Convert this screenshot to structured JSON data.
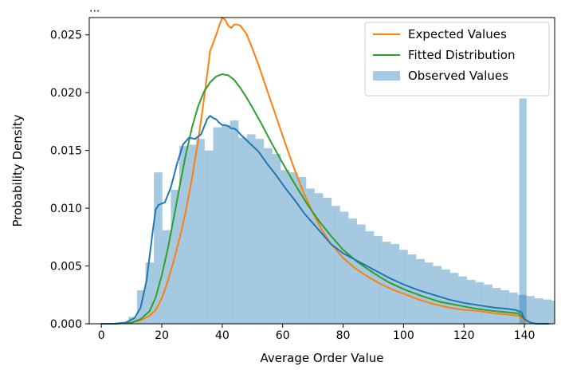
{
  "chart_data": {
    "type": "histogram",
    "top_caption": "...",
    "xlabel": "Average Order Value",
    "ylabel": "Probability Density",
    "xlim": [
      -4,
      150
    ],
    "ylim": [
      0,
      0.0265
    ],
    "xticks": [
      0,
      20,
      40,
      60,
      80,
      100,
      120,
      140
    ],
    "yticks": [
      0.0,
      0.005,
      0.01,
      0.015,
      0.02,
      0.025
    ],
    "ytick_labels": [
      "0.000",
      "0.005",
      "0.010",
      "0.015",
      "0.020",
      "0.025"
    ],
    "grid": false,
    "legend": {
      "placement": "top-right",
      "entries": [
        {
          "name": "Expected Values",
          "kind": "line",
          "color": "#ff7f0e"
        },
        {
          "name": "Fitted Distribution",
          "kind": "line",
          "color": "#2ca02c"
        },
        {
          "name": "Observed Values",
          "kind": "patch",
          "color": "#1f77b4"
        }
      ]
    },
    "histogram": {
      "name": "Observed Values",
      "color": "#1f77b4",
      "alpha": 0.4,
      "bin_width": 2.8,
      "bins_start": 9,
      "values": [
        0.0006,
        0.0029,
        0.0053,
        0.0131,
        0.0081,
        0.0116,
        0.0154,
        0.0155,
        0.016,
        0.015,
        0.017,
        0.0172,
        0.0176,
        0.0161,
        0.0164,
        0.016,
        0.0152,
        0.0147,
        0.0133,
        0.0131,
        0.0127,
        0.0117,
        0.0113,
        0.0109,
        0.0102,
        0.0097,
        0.0091,
        0.0086,
        0.008,
        0.0076,
        0.0071,
        0.0069,
        0.0064,
        0.006,
        0.0056,
        0.0053,
        0.005,
        0.0047,
        0.0044,
        0.0041,
        0.0038,
        0.0036,
        0.0034,
        0.0031,
        0.0029,
        0.0027,
        0.0025,
        0.0024,
        0.0022,
        0.0021,
        0.002,
        0.0019,
        0.0018,
        0.0017,
        0.0016,
        0.0015,
        0.0014,
        0.0014,
        0.0013,
        0.0012,
        0.0011,
        0.001,
        0.0009,
        0.0009,
        0.0008,
        0.0008,
        0.0007,
        0.0007,
        0.0006,
        0.0006,
        0.0006,
        0.0005,
        0.0005,
        0.0005,
        0.0005,
        0.0004,
        0.0004,
        0.0004,
        0.0004,
        0.0004,
        0.0004,
        0.0004,
        0.0004,
        0.0004,
        0.0004,
        0.0004,
        0.0004,
        0.0004,
        0.0004,
        0.0004,
        0.0004,
        0.0004,
        0.0004,
        0.0004,
        0.0004,
        0.0004,
        0.0004,
        0.0004,
        0.0004,
        0.0004
      ],
      "spike": {
        "x_start": 138.3,
        "x_end": 140.7,
        "value": 0.0195
      }
    },
    "series": [
      {
        "name": "Expected Values",
        "color": "#ff7f0e",
        "x": [
          0,
          5,
          10,
          13,
          16,
          18,
          20,
          22,
          24,
          26,
          28,
          30,
          32,
          34,
          36,
          38,
          39,
          40,
          41,
          42,
          43,
          44,
          45,
          46,
          48,
          50,
          52,
          55,
          58,
          61,
          64,
          67,
          70,
          73,
          76,
          80,
          84,
          88,
          92,
          96,
          100,
          105,
          110,
          115,
          120,
          125,
          130,
          134,
          138,
          140,
          142,
          144,
          146,
          148
        ],
        "y": [
          0.0,
          0.0,
          0.0001,
          0.0003,
          0.0007,
          0.0012,
          0.0022,
          0.0037,
          0.0055,
          0.0075,
          0.0098,
          0.0126,
          0.0158,
          0.0195,
          0.0236,
          0.025,
          0.0258,
          0.0265,
          0.0263,
          0.0258,
          0.0256,
          0.0259,
          0.0259,
          0.0258,
          0.0251,
          0.0238,
          0.0224,
          0.0201,
          0.0178,
          0.0155,
          0.0133,
          0.0113,
          0.0096,
          0.0081,
          0.0069,
          0.0057,
          0.0048,
          0.0041,
          0.0035,
          0.003,
          0.0026,
          0.0021,
          0.0017,
          0.0014,
          0.0012,
          0.0011,
          0.0009,
          0.0008,
          0.0007,
          0.0003,
          0.0001,
          0.0,
          0.0,
          0.0
        ]
      },
      {
        "name": "Fitted Distribution",
        "color": "#2ca02c",
        "x": [
          0,
          5,
          10,
          13,
          16,
          18,
          20,
          22,
          24,
          26,
          28,
          30,
          32,
          34,
          36,
          38,
          40,
          42,
          44,
          46,
          48,
          50,
          53,
          56,
          60,
          64,
          68,
          72,
          76,
          80,
          85,
          90,
          95,
          100,
          106,
          112,
          118,
          124,
          130,
          134,
          138,
          140,
          142,
          144,
          146,
          148
        ],
        "y": [
          0.0,
          0.0,
          0.0001,
          0.0004,
          0.0011,
          0.0023,
          0.0042,
          0.0065,
          0.0092,
          0.012,
          0.0147,
          0.017,
          0.0188,
          0.0201,
          0.0209,
          0.0214,
          0.0216,
          0.0215,
          0.0211,
          0.0204,
          0.0196,
          0.0187,
          0.0173,
          0.0158,
          0.0139,
          0.0121,
          0.0104,
          0.0089,
          0.0076,
          0.0064,
          0.0053,
          0.0044,
          0.0036,
          0.003,
          0.0024,
          0.0019,
          0.0016,
          0.0013,
          0.0011,
          0.001,
          0.0009,
          0.0004,
          0.0001,
          0.0,
          0.0,
          0.0
        ]
      },
      {
        "name": "Observed KDE",
        "color": "#1f77b4",
        "x": [
          0,
          4,
          8,
          11,
          13,
          15,
          17,
          18,
          19,
          21,
          23,
          25,
          27,
          29,
          31,
          33,
          35,
          36,
          37,
          38,
          39,
          40,
          41,
          42,
          43,
          44,
          45,
          46,
          48,
          50,
          52,
          55,
          58,
          61,
          64,
          67,
          70,
          73,
          76,
          80,
          85,
          90,
          95,
          100,
          105,
          110,
          115,
          120,
          125,
          130,
          134,
          137,
          139,
          140,
          142,
          144,
          146,
          148
        ],
        "y": [
          0.0,
          0.0,
          0.0001,
          0.0005,
          0.0014,
          0.0038,
          0.008,
          0.0099,
          0.0103,
          0.0105,
          0.0118,
          0.0138,
          0.0155,
          0.0161,
          0.016,
          0.0164,
          0.0177,
          0.018,
          0.0178,
          0.0177,
          0.0174,
          0.0172,
          0.0172,
          0.0171,
          0.0169,
          0.0169,
          0.0167,
          0.0164,
          0.0159,
          0.0154,
          0.0149,
          0.0138,
          0.0128,
          0.0117,
          0.0107,
          0.0096,
          0.0087,
          0.0078,
          0.0069,
          0.0061,
          0.0054,
          0.0047,
          0.004,
          0.0034,
          0.0029,
          0.0025,
          0.0021,
          0.0018,
          0.0016,
          0.0014,
          0.0013,
          0.0012,
          0.001,
          0.0004,
          0.0001,
          0.0,
          0.0,
          0.0
        ]
      }
    ]
  }
}
